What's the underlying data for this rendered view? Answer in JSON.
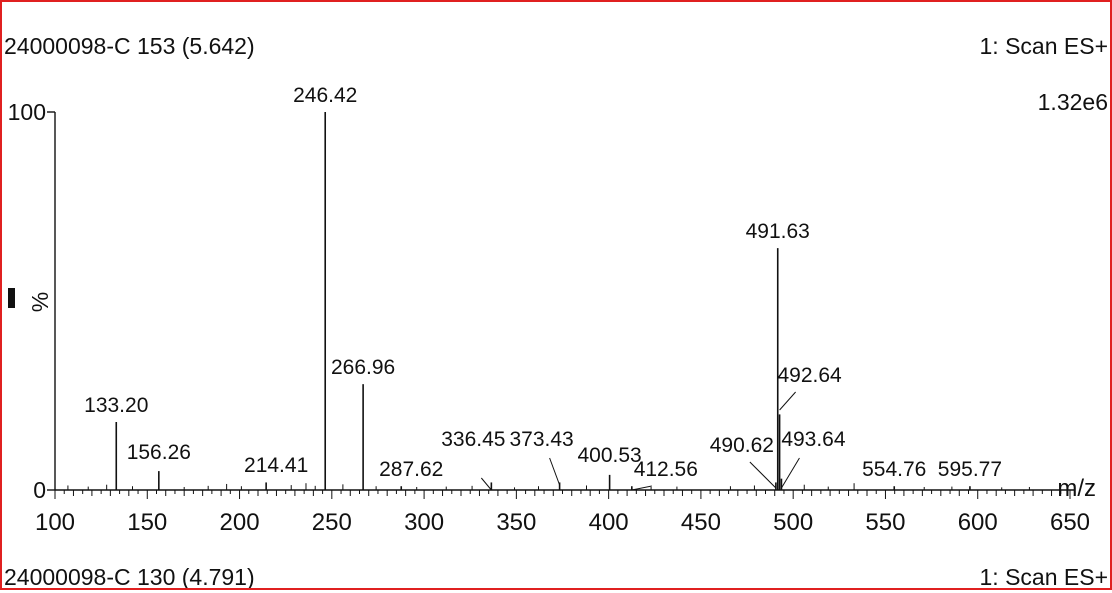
{
  "header": {
    "sample_top": "24000098-C 153 (5.642)",
    "scan_top": "1: Scan ES+",
    "intensity": "1.32e6",
    "sample_bottom": "24000098-C 130 (4.791)",
    "scan_bottom": "1: Scan ES+"
  },
  "colors": {
    "border": "#e02020",
    "ink": "#111111"
  },
  "chart_data": {
    "type": "bar",
    "title": "24000098-C 153 (5.642)",
    "xlabel": "m/z",
    "ylabel": "%",
    "xlim": [
      100,
      650
    ],
    "ylim": [
      0,
      100
    ],
    "x_ticks": [
      "100",
      "150",
      "200",
      "250",
      "300",
      "350",
      "400",
      "450",
      "500",
      "550",
      "600",
      "650"
    ],
    "y_ticks": [
      "0",
      "100"
    ],
    "labeled_peaks": [
      {
        "mz": 133.2,
        "label": "133.20",
        "intensity": 18
      },
      {
        "mz": 156.26,
        "label": "156.26",
        "intensity": 5
      },
      {
        "mz": 214.41,
        "label": "214.41",
        "intensity": 2
      },
      {
        "mz": 246.42,
        "label": "246.42",
        "intensity": 100
      },
      {
        "mz": 266.96,
        "label": "266.96",
        "intensity": 28
      },
      {
        "mz": 287.62,
        "label": "287.62",
        "intensity": 1
      },
      {
        "mz": 336.45,
        "label": "336.45",
        "intensity": 2
      },
      {
        "mz": 373.43,
        "label": "373.43",
        "intensity": 2
      },
      {
        "mz": 400.53,
        "label": "400.53",
        "intensity": 4
      },
      {
        "mz": 412.56,
        "label": "412.56",
        "intensity": 1
      },
      {
        "mz": 490.62,
        "label": "490.62",
        "intensity": 2
      },
      {
        "mz": 491.63,
        "label": "491.63",
        "intensity": 64
      },
      {
        "mz": 492.64,
        "label": "492.64",
        "intensity": 20
      },
      {
        "mz": 493.64,
        "label": "493.64",
        "intensity": 3
      },
      {
        "mz": 554.76,
        "label": "554.76",
        "intensity": 1
      },
      {
        "mz": 595.77,
        "label": "595.77",
        "intensity": 1
      }
    ],
    "minor_peaks": [
      {
        "mz": 107,
        "intensity": 1.2
      },
      {
        "mz": 118,
        "intensity": 0.9
      },
      {
        "mz": 128,
        "intensity": 1.4
      },
      {
        "mz": 142,
        "intensity": 1.0
      },
      {
        "mz": 170,
        "intensity": 0.8
      },
      {
        "mz": 183,
        "intensity": 1.1
      },
      {
        "mz": 193,
        "intensity": 1.6
      },
      {
        "mz": 201,
        "intensity": 1.0
      },
      {
        "mz": 228,
        "intensity": 1.3
      },
      {
        "mz": 236,
        "intensity": 1.8
      },
      {
        "mz": 241,
        "intensity": 1.1
      },
      {
        "mz": 256,
        "intensity": 1.5
      },
      {
        "mz": 274,
        "intensity": 1.0
      },
      {
        "mz": 296,
        "intensity": 0.8
      },
      {
        "mz": 312,
        "intensity": 0.9
      },
      {
        "mz": 326,
        "intensity": 1.1
      },
      {
        "mz": 349,
        "intensity": 0.7
      },
      {
        "mz": 362,
        "intensity": 1.0
      },
      {
        "mz": 388,
        "intensity": 1.2
      },
      {
        "mz": 423,
        "intensity": 0.8
      },
      {
        "mz": 437,
        "intensity": 0.9
      },
      {
        "mz": 466,
        "intensity": 1.0
      },
      {
        "mz": 479,
        "intensity": 1.2
      },
      {
        "mz": 506,
        "intensity": 1.4
      },
      {
        "mz": 519,
        "intensity": 0.9
      },
      {
        "mz": 533,
        "intensity": 1.8
      },
      {
        "mz": 571,
        "intensity": 0.8
      },
      {
        "mz": 586,
        "intensity": 0.9
      },
      {
        "mz": 613,
        "intensity": 0.7
      },
      {
        "mz": 628,
        "intensity": 0.8
      }
    ],
    "grid": false,
    "legend": "none"
  }
}
